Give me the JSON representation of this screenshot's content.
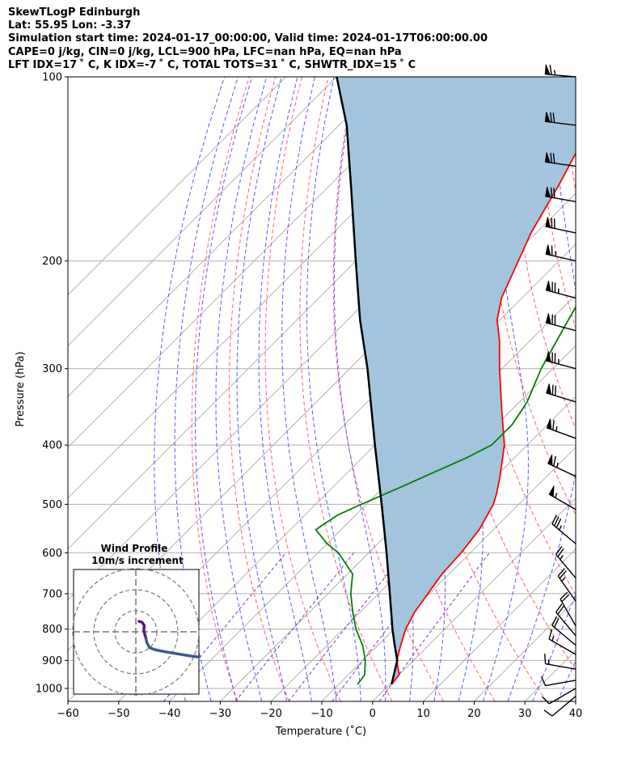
{
  "header": {
    "title": "SkewTLogP Edinburgh",
    "location": "Lat: 55.95   Lon: -3.37",
    "times": "Simulation start time: 2024-01-17_00:00:00, Valid time: 2024-01-17T06:00:00.00",
    "indices_1": "CAPE=0 j/kg, CIN=0 j/kg, LCL=900 hPa, LFC=nan hPa, EQ=nan hPa",
    "indices_2": "LFT IDX=17 ˚ C, K IDX=-7 ˚ C, TOTAL TOTS=31 ˚ C, SHWTR_IDX=15 ˚ C"
  },
  "chart_data": {
    "type": "line",
    "xlabel": "Temperature (˚C)",
    "ylabel": "Pressure (hPa)",
    "xlim": [
      -60,
      40
    ],
    "ylim": [
      1050,
      100
    ],
    "yscale": "log",
    "skew": "45deg",
    "xticks": [
      -60,
      -50,
      -40,
      -30,
      -20,
      -10,
      0,
      10,
      20,
      30,
      40
    ],
    "yticks": [
      100,
      200,
      300,
      400,
      500,
      600,
      700,
      800,
      900,
      1000
    ],
    "grid": true,
    "colors": {
      "temperature": "#ff0000",
      "dewpoint": "#008000",
      "parcel": "#000000",
      "shading": "#a2c5dd",
      "dry_adiabats": "#ff6666",
      "moist_adiabats": "#5a5aff",
      "mixing_ratio": "#8833cc",
      "isotherms": "#aaaaaa",
      "hodograph_low": "#5a1a6a",
      "hodograph_high": "#3a5a90"
    },
    "series": [
      {
        "key": "temperature",
        "points": [
          [
            985,
            0.4
          ],
          [
            950,
            0.0
          ],
          [
            930,
            -1.3
          ],
          [
            900,
            -3.3
          ],
          [
            850,
            -5.5
          ],
          [
            800,
            -7.7
          ],
          [
            750,
            -9.3
          ],
          [
            700,
            -10.3
          ],
          [
            650,
            -11.4
          ],
          [
            600,
            -11.8
          ],
          [
            550,
            -12.8
          ],
          [
            500,
            -15.0
          ],
          [
            480,
            -16.5
          ],
          [
            450,
            -19.2
          ],
          [
            400,
            -24.5
          ],
          [
            350,
            -32.0
          ],
          [
            300,
            -40.5
          ],
          [
            270,
            -46.0
          ],
          [
            250,
            -50.5
          ],
          [
            230,
            -54.0
          ],
          [
            200,
            -58.0
          ],
          [
            180,
            -61.0
          ],
          [
            150,
            -65.0
          ],
          [
            130,
            -68.5
          ],
          [
            115,
            -72.0
          ],
          [
            100,
            -76.0
          ]
        ]
      },
      {
        "key": "dewpoint",
        "points": [
          [
            985,
            -6.3
          ],
          [
            950,
            -6.8
          ],
          [
            900,
            -9.5
          ],
          [
            850,
            -13.0
          ],
          [
            800,
            -17.5
          ],
          [
            750,
            -21.5
          ],
          [
            700,
            -25.5
          ],
          [
            650,
            -29.0
          ],
          [
            600,
            -36.0
          ],
          [
            580,
            -40.0
          ],
          [
            550,
            -45.0
          ],
          [
            520,
            -43.5
          ],
          [
            500,
            -41.0
          ],
          [
            470,
            -36.8
          ],
          [
            450,
            -34.0
          ],
          [
            420,
            -29.5
          ],
          [
            400,
            -27.0
          ],
          [
            370,
            -27.0
          ],
          [
            340,
            -28.5
          ],
          [
            300,
            -32.3
          ],
          [
            250,
            -36.5
          ],
          [
            200,
            -41.5
          ],
          [
            170,
            -45.5
          ],
          [
            150,
            -47.0
          ],
          [
            140,
            -48.5
          ],
          [
            120,
            -51.0
          ],
          [
            100,
            -55.0
          ]
        ]
      },
      {
        "key": "parcel",
        "points": [
          [
            985,
            0.4
          ],
          [
            900,
            -3.2
          ],
          [
            850,
            -6.7
          ],
          [
            800,
            -10.3
          ],
          [
            700,
            -17.8
          ],
          [
            600,
            -26.5
          ],
          [
            500,
            -37.0
          ],
          [
            400,
            -50.0
          ],
          [
            300,
            -66.5
          ],
          [
            250,
            -77.5
          ],
          [
            200,
            -90.0
          ],
          [
            150,
            -106.0
          ],
          [
            120,
            -118.5
          ],
          [
            100,
            -130.0
          ]
        ]
      }
    ],
    "wind_barbs": {
      "pressures": [
        100,
        120,
        140,
        160,
        180,
        200,
        230,
        260,
        300,
        340,
        390,
        450,
        510,
        580,
        660,
        720,
        790,
        820,
        850,
        880,
        930,
        970,
        1000,
        1030
      ],
      "direction_deg": [
        275,
        277,
        278,
        280,
        282,
        283,
        285,
        285,
        285,
        287,
        290,
        295,
        300,
        310,
        320,
        325,
        330,
        320,
        310,
        300,
        280,
        260,
        240,
        230
      ],
      "speed_kt": [
        65,
        70,
        70,
        70,
        70,
        65,
        75,
        70,
        75,
        70,
        65,
        65,
        55,
        35,
        25,
        25,
        20,
        20,
        20,
        15,
        15,
        10,
        10,
        10
      ]
    },
    "hodograph": {
      "title": "Wind Profile",
      "subtitle": "10m/s increment",
      "rings_ms": [
        10,
        20,
        30
      ],
      "points": [
        [
          1.5,
          5.0
        ],
        [
          3.0,
          4.5
        ],
        [
          4.0,
          3.0
        ],
        [
          3.8,
          1.0
        ],
        [
          4.2,
          -1.0
        ],
        [
          4.8,
          -3.0
        ],
        [
          5.2,
          -5.0
        ],
        [
          6.5,
          -7.5
        ],
        [
          9.0,
          -8.5
        ],
        [
          14.0,
          -9.5
        ],
        [
          20.0,
          -10.5
        ],
        [
          26.0,
          -11.5
        ],
        [
          30.0,
          -12.0
        ]
      ]
    }
  }
}
